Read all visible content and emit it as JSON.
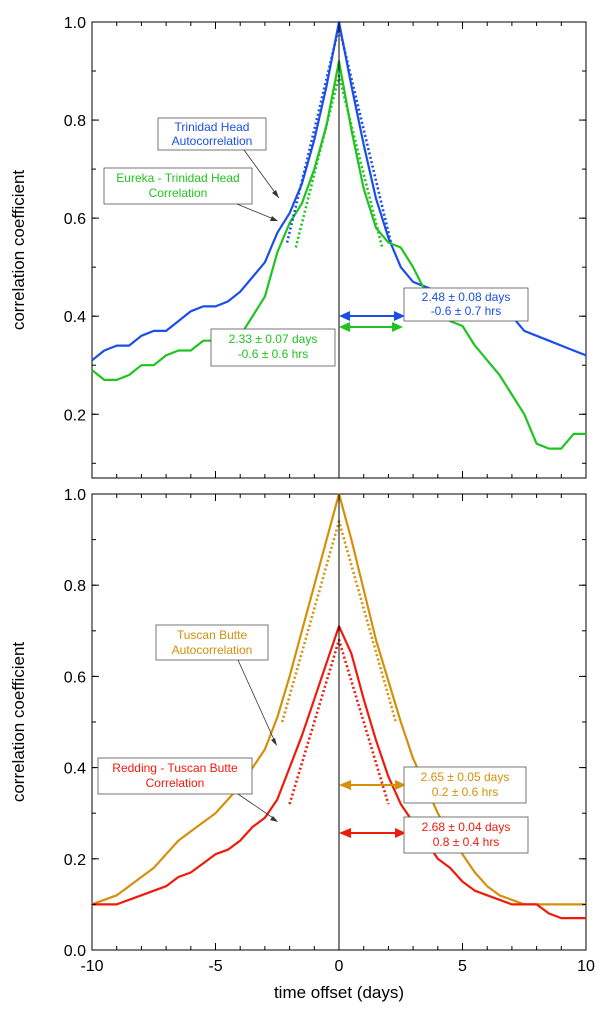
{
  "chart_data": [
    {
      "type": "line",
      "ylabel": "correlation coefficient",
      "xlabel": "",
      "xlim": [
        -10,
        10
      ],
      "ylim": [
        0.07,
        1.0
      ],
      "xticks": [
        -10,
        -5,
        0,
        5,
        10
      ],
      "yticks": [
        0.2,
        0.4,
        0.6,
        0.8,
        1.0
      ],
      "ytick_labels": [
        "0.2",
        "0.4",
        "0.6",
        "0.8",
        "1.0"
      ],
      "grid": false,
      "series": [
        {
          "color": "#1a4ee8",
          "style": "solid",
          "x": [
            -10,
            -9.5,
            -9,
            -8.5,
            -8,
            -7.5,
            -7,
            -6.5,
            -6,
            -5.5,
            -5,
            -4.5,
            -4,
            -3.5,
            -3,
            -2.5,
            -2,
            -1.5,
            -1,
            -0.5,
            0,
            0.5,
            1,
            1.5,
            2,
            2.5,
            3,
            3.5,
            4,
            4.5,
            5,
            5.5,
            6,
            6.5,
            7,
            7.5,
            8,
            8.5,
            9,
            9.5,
            10
          ],
          "y": [
            0.31,
            0.33,
            0.34,
            0.34,
            0.36,
            0.37,
            0.37,
            0.39,
            0.41,
            0.42,
            0.42,
            0.43,
            0.45,
            0.48,
            0.51,
            0.57,
            0.61,
            0.67,
            0.76,
            0.87,
            1.0,
            0.87,
            0.75,
            0.64,
            0.56,
            0.5,
            0.47,
            0.46,
            0.45,
            0.44,
            0.43,
            0.43,
            0.42,
            0.42,
            0.4,
            0.37,
            0.36,
            0.35,
            0.34,
            0.33,
            0.32
          ]
        },
        {
          "color": "#21c321",
          "style": "solid",
          "x": [
            -10,
            -9.5,
            -9,
            -8.5,
            -8,
            -7.5,
            -7,
            -6.5,
            -6,
            -5.5,
            -5,
            -4.5,
            -4,
            -3.5,
            -3,
            -2.5,
            -2,
            -1.5,
            -1,
            -0.5,
            0,
            0.5,
            1,
            1.5,
            2,
            2.5,
            3,
            3.5,
            4,
            4.5,
            5,
            5.5,
            6,
            6.5,
            7,
            7.5,
            8,
            8.5,
            9,
            9.5,
            10
          ],
          "y": [
            0.29,
            0.27,
            0.27,
            0.28,
            0.3,
            0.3,
            0.32,
            0.33,
            0.33,
            0.35,
            0.35,
            0.36,
            0.36,
            0.4,
            0.44,
            0.53,
            0.59,
            0.63,
            0.7,
            0.79,
            0.92,
            0.78,
            0.66,
            0.58,
            0.55,
            0.54,
            0.5,
            0.45,
            0.42,
            0.39,
            0.38,
            0.34,
            0.31,
            0.28,
            0.24,
            0.2,
            0.14,
            0.13,
            0.13,
            0.16,
            0.16
          ]
        },
        {
          "color": "#1a4ee8",
          "style": "dotted",
          "x": [
            -2.1,
            0,
            2.1
          ],
          "y": [
            0.55,
            0.99,
            0.55
          ]
        },
        {
          "color": "#21c321",
          "style": "dotted",
          "x": [
            -1.75,
            0,
            1.75
          ],
          "y": [
            0.54,
            0.89,
            0.54
          ]
        }
      ],
      "annotations": [
        {
          "line1": "Trinidad Head",
          "line2": "Autocorrelation",
          "color": "#1a4ee8"
        },
        {
          "line1": "Eureka - Trinidad Head",
          "line2": "Correlation",
          "color": "#21c321"
        },
        {
          "line1": "2.48 ± 0.08 days",
          "line2": "-0.6 ± 0.7 hrs",
          "color": "#1a4ee8"
        },
        {
          "line1": "2.33 ± 0.07 days",
          "line2": "-0.6 ± 0.6 hrs",
          "color": "#21c321"
        }
      ]
    },
    {
      "type": "line",
      "ylabel": "correlation coefficient",
      "xlabel": "time offset (days)",
      "xlim": [
        -10,
        10
      ],
      "ylim": [
        0.0,
        1.0
      ],
      "xticks": [
        -10,
        -5,
        0,
        5,
        10
      ],
      "yticks": [
        0.0,
        0.2,
        0.4,
        0.6,
        0.8,
        1.0
      ],
      "ytick_labels": [
        "0.0",
        "0.2",
        "0.4",
        "0.6",
        "0.8",
        "1.0"
      ],
      "grid": false,
      "series": [
        {
          "color": "#d4900a",
          "style": "solid",
          "x": [
            -10,
            -9.5,
            -9,
            -8.5,
            -8,
            -7.5,
            -7,
            -6.5,
            -6,
            -5.5,
            -5,
            -4.5,
            -4,
            -3.5,
            -3,
            -2.5,
            -2,
            -1.5,
            -1,
            -0.5,
            0,
            0.5,
            1,
            1.5,
            2,
            2.5,
            3,
            3.5,
            4,
            4.5,
            5,
            5.5,
            6,
            6.5,
            7,
            7.5,
            8,
            8.5,
            9,
            9.5,
            10
          ],
          "y": [
            0.1,
            0.11,
            0.12,
            0.14,
            0.16,
            0.18,
            0.21,
            0.24,
            0.26,
            0.28,
            0.3,
            0.33,
            0.36,
            0.4,
            0.44,
            0.51,
            0.6,
            0.7,
            0.8,
            0.9,
            1.0,
            0.9,
            0.79,
            0.68,
            0.59,
            0.5,
            0.42,
            0.36,
            0.3,
            0.25,
            0.21,
            0.17,
            0.14,
            0.12,
            0.11,
            0.1,
            0.1,
            0.1,
            0.1,
            0.1,
            0.1
          ]
        },
        {
          "color": "#f01a0a",
          "style": "solid",
          "x": [
            -10,
            -9.5,
            -9,
            -8.5,
            -8,
            -7.5,
            -7,
            -6.5,
            -6,
            -5.5,
            -5,
            -4.5,
            -4,
            -3.5,
            -3,
            -2.5,
            -2,
            -1.5,
            -1,
            -0.5,
            0,
            0.5,
            1,
            1.5,
            2,
            2.5,
            3,
            3.5,
            4,
            4.5,
            5,
            5.5,
            6,
            6.5,
            7,
            7.5,
            8,
            8.5,
            9,
            9.5,
            10
          ],
          "y": [
            0.1,
            0.1,
            0.1,
            0.11,
            0.12,
            0.13,
            0.14,
            0.16,
            0.17,
            0.19,
            0.21,
            0.22,
            0.24,
            0.27,
            0.29,
            0.33,
            0.4,
            0.47,
            0.55,
            0.63,
            0.71,
            0.65,
            0.55,
            0.46,
            0.38,
            0.32,
            0.28,
            0.24,
            0.2,
            0.18,
            0.15,
            0.13,
            0.12,
            0.11,
            0.1,
            0.1,
            0.1,
            0.08,
            0.07,
            0.07,
            0.07
          ]
        },
        {
          "color": "#d4900a",
          "style": "dotted",
          "x": [
            -2.3,
            0,
            2.3
          ],
          "y": [
            0.5,
            0.94,
            0.5
          ]
        },
        {
          "color": "#f01a0a",
          "style": "dotted",
          "x": [
            -2.0,
            0,
            2.0
          ],
          "y": [
            0.32,
            0.68,
            0.32
          ]
        }
      ],
      "annotations": [
        {
          "line1": "Tuscan Butte",
          "line2": "Autocorrelation",
          "color": "#d4900a"
        },
        {
          "line1": "Redding - Tuscan Butte",
          "line2": "Correlation",
          "color": "#f01a0a"
        },
        {
          "line1": "2.65 ± 0.05 days",
          "line2": "0.2 ± 0.6 hrs",
          "color": "#d4900a"
        },
        {
          "line1": "2.68 ± 0.04 days",
          "line2": "0.8 ± 0.4 hrs",
          "color": "#f01a0a"
        }
      ]
    }
  ]
}
